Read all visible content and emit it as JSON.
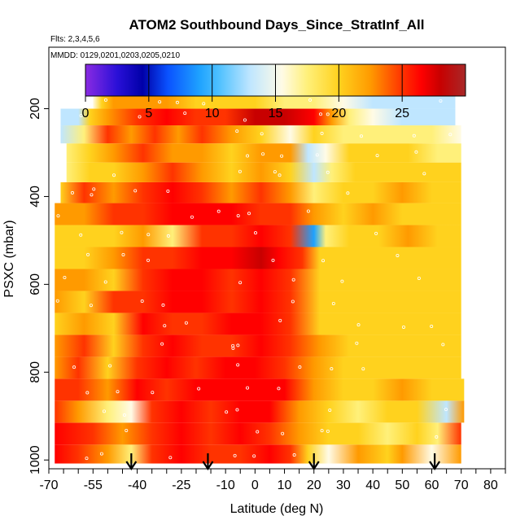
{
  "chart_data": {
    "type": "heatmap",
    "title": "ATOM2 Southbound Days_Since_StratInf_All",
    "flights_note": "Flts: 2,3,4,5,6",
    "dates_note": "MMDD: 0129,0201,0203,0205,0210",
    "xlabel": "Latitude (deg N)",
    "ylabel": "PSXC (mbar)",
    "xlim": [
      -70,
      85
    ],
    "ylim": [
      1020,
      60
    ],
    "x_ticks": [
      -70,
      -55,
      -40,
      -25,
      -10,
      0,
      10,
      20,
      30,
      40,
      50,
      60,
      70,
      80
    ],
    "x_minor_ticks": [
      -65,
      -60,
      -50,
      -45,
      -35,
      -30,
      -20,
      -15,
      -5,
      5,
      15,
      25,
      35,
      45,
      55,
      65,
      75,
      85
    ],
    "y_ticks": [
      200,
      400,
      600,
      800,
      1000
    ],
    "colorbar": {
      "range": [
        0,
        30
      ],
      "ticks": [
        0,
        5,
        10,
        15,
        20,
        25
      ],
      "stops": [
        {
          "v": 0,
          "color": "#8a2be2"
        },
        {
          "v": 2.5,
          "color": "#2a10d8"
        },
        {
          "v": 4.5,
          "color": "#0000a8"
        },
        {
          "v": 6.5,
          "color": "#0a52ff"
        },
        {
          "v": 9,
          "color": "#1ea2ff"
        },
        {
          "v": 10.5,
          "color": "#4dc0ff"
        },
        {
          "v": 13,
          "color": "#bfe6ff"
        },
        {
          "v": 15.5,
          "color": "#fffbe6"
        },
        {
          "v": 17.5,
          "color": "#fff07a"
        },
        {
          "v": 20,
          "color": "#ffd21e"
        },
        {
          "v": 22.5,
          "color": "#ff9a00"
        },
        {
          "v": 25,
          "color": "#ff3300"
        },
        {
          "v": 26.5,
          "color": "#ff0000"
        },
        {
          "v": 28,
          "color": "#c80000"
        },
        {
          "v": 30,
          "color": "#a82828"
        }
      ]
    },
    "arrow_latitudes": [
      -42,
      -16,
      20,
      61
    ],
    "profile_x_range": [
      -68,
      72
    ],
    "rows": [
      {
        "p": 990,
        "profile": [
          [
            -68,
            27
          ],
          [
            -60,
            25
          ],
          [
            -50,
            23
          ],
          [
            -42,
            18
          ],
          [
            -35,
            25
          ],
          [
            -25,
            26
          ],
          [
            -15,
            24
          ],
          [
            -5,
            25
          ],
          [
            5,
            26
          ],
          [
            12,
            25
          ],
          [
            18,
            20
          ],
          [
            25,
            16
          ],
          [
            35,
            22
          ],
          [
            45,
            19
          ],
          [
            50,
            22
          ],
          [
            60,
            16
          ],
          [
            70,
            23
          ]
        ]
      },
      {
        "p": 940,
        "profile": [
          [
            -68,
            26
          ],
          [
            -55,
            25
          ],
          [
            -45,
            22
          ],
          [
            -35,
            25
          ],
          [
            -25,
            27
          ],
          [
            -15,
            24
          ],
          [
            -5,
            26
          ],
          [
            5,
            25
          ],
          [
            15,
            23
          ],
          [
            25,
            19
          ],
          [
            35,
            21
          ],
          [
            45,
            18
          ],
          [
            55,
            21
          ],
          [
            62,
            17
          ],
          [
            70,
            24
          ]
        ]
      },
      {
        "p": 890,
        "profile": [
          [
            -68,
            24
          ],
          [
            -60,
            23
          ],
          [
            -50,
            17
          ],
          [
            -42,
            16
          ],
          [
            -35,
            24
          ],
          [
            -25,
            26
          ],
          [
            -15,
            25
          ],
          [
            -5,
            27
          ],
          [
            5,
            26
          ],
          [
            15,
            22
          ],
          [
            25,
            19
          ],
          [
            35,
            17
          ],
          [
            45,
            21
          ],
          [
            55,
            19
          ],
          [
            65,
            14
          ],
          [
            71,
            22
          ]
        ]
      },
      {
        "p": 840,
        "profile": [
          [
            -68,
            25
          ],
          [
            -60,
            24
          ],
          [
            -50,
            23
          ],
          [
            -40,
            26
          ],
          [
            -30,
            25
          ],
          [
            -20,
            27
          ],
          [
            -10,
            26
          ],
          [
            0,
            27
          ],
          [
            10,
            26
          ],
          [
            20,
            23
          ],
          [
            30,
            21
          ],
          [
            40,
            20
          ],
          [
            50,
            22
          ],
          [
            60,
            20
          ],
          [
            71,
            21
          ]
        ]
      },
      {
        "p": 790,
        "profile": [
          [
            -68,
            23
          ],
          [
            -60,
            24
          ],
          [
            -50,
            21
          ],
          [
            -40,
            25
          ],
          [
            -30,
            26
          ],
          [
            -20,
            25
          ],
          [
            -10,
            27
          ],
          [
            0,
            26
          ],
          [
            10,
            25
          ],
          [
            20,
            22
          ],
          [
            30,
            20
          ],
          [
            40,
            19
          ],
          [
            50,
            21
          ],
          [
            60,
            20
          ],
          [
            70,
            21
          ]
        ]
      },
      {
        "p": 740,
        "profile": [
          [
            -68,
            22
          ],
          [
            -58,
            24
          ],
          [
            -48,
            20
          ],
          [
            -38,
            25
          ],
          [
            -28,
            26
          ],
          [
            -18,
            25
          ],
          [
            -8,
            24
          ],
          [
            2,
            26
          ],
          [
            12,
            25
          ],
          [
            22,
            22
          ],
          [
            32,
            20
          ],
          [
            42,
            19
          ],
          [
            52,
            20
          ],
          [
            62,
            21
          ],
          [
            70,
            20
          ]
        ]
      },
      {
        "p": 690,
        "profile": [
          [
            -68,
            21
          ],
          [
            -58,
            22
          ],
          [
            -48,
            20
          ],
          [
            -38,
            26
          ],
          [
            -28,
            25
          ],
          [
            -18,
            24
          ],
          [
            -8,
            26
          ],
          [
            2,
            27
          ],
          [
            12,
            25
          ],
          [
            22,
            20
          ],
          [
            32,
            19
          ],
          [
            42,
            20
          ],
          [
            52,
            21
          ],
          [
            62,
            19
          ],
          [
            70,
            20
          ]
        ]
      },
      {
        "p": 640,
        "profile": [
          [
            -68,
            22
          ],
          [
            -58,
            21
          ],
          [
            -48,
            24
          ],
          [
            -38,
            25
          ],
          [
            -28,
            26
          ],
          [
            -18,
            27
          ],
          [
            -8,
            25
          ],
          [
            2,
            26
          ],
          [
            12,
            24
          ],
          [
            22,
            20
          ],
          [
            32,
            19
          ],
          [
            42,
            21
          ],
          [
            52,
            20
          ],
          [
            62,
            21
          ],
          [
            70,
            19
          ]
        ]
      },
      {
        "p": 590,
        "profile": [
          [
            -68,
            22
          ],
          [
            -58,
            23
          ],
          [
            -48,
            20
          ],
          [
            -38,
            24
          ],
          [
            -28,
            26
          ],
          [
            -18,
            27
          ],
          [
            -8,
            25
          ],
          [
            2,
            26
          ],
          [
            12,
            25
          ],
          [
            22,
            19
          ],
          [
            32,
            20
          ],
          [
            42,
            21
          ],
          [
            52,
            19
          ],
          [
            62,
            20
          ],
          [
            70,
            21
          ]
        ]
      },
      {
        "p": 540,
        "profile": [
          [
            -68,
            21
          ],
          [
            -58,
            19
          ],
          [
            -48,
            22
          ],
          [
            -38,
            24
          ],
          [
            -28,
            25
          ],
          [
            -18,
            26
          ],
          [
            -8,
            27
          ],
          [
            2,
            28
          ],
          [
            8,
            26
          ],
          [
            16,
            24
          ],
          [
            22,
            21
          ],
          [
            32,
            20
          ],
          [
            42,
            19
          ],
          [
            52,
            21
          ],
          [
            62,
            20
          ],
          [
            70,
            21
          ]
        ]
      },
      {
        "p": 490,
        "profile": [
          [
            -68,
            21
          ],
          [
            -58,
            20
          ],
          [
            -48,
            21
          ],
          [
            -38,
            22
          ],
          [
            -28,
            18
          ],
          [
            -18,
            24
          ],
          [
            -8,
            25
          ],
          [
            2,
            26
          ],
          [
            12,
            24
          ],
          [
            20,
            8
          ],
          [
            24,
            18
          ],
          [
            32,
            20
          ],
          [
            42,
            21
          ],
          [
            52,
            22
          ],
          [
            62,
            21
          ],
          [
            70,
            20
          ]
        ]
      },
      {
        "p": 440,
        "profile": [
          [
            -68,
            22
          ],
          [
            -58,
            23
          ],
          [
            -48,
            24
          ],
          [
            -38,
            25
          ],
          [
            -28,
            26
          ],
          [
            -18,
            27
          ],
          [
            -8,
            26
          ],
          [
            2,
            25
          ],
          [
            12,
            24
          ],
          [
            20,
            22
          ],
          [
            30,
            21
          ],
          [
            40,
            22
          ],
          [
            50,
            21
          ],
          [
            60,
            20
          ],
          [
            70,
            21
          ]
        ]
      },
      {
        "p": 390,
        "profile": [
          [
            -66,
            21
          ],
          [
            -58,
            24
          ],
          [
            -48,
            22
          ],
          [
            -38,
            25
          ],
          [
            -28,
            26
          ],
          [
            -18,
            24
          ],
          [
            -8,
            22
          ],
          [
            2,
            24
          ],
          [
            12,
            23
          ],
          [
            20,
            18
          ],
          [
            30,
            20
          ],
          [
            40,
            21
          ],
          [
            50,
            22
          ],
          [
            60,
            20
          ],
          [
            70,
            21
          ]
        ]
      },
      {
        "p": 345,
        "profile": [
          [
            -64,
            18
          ],
          [
            -56,
            21
          ],
          [
            -48,
            20
          ],
          [
            -38,
            22
          ],
          [
            -28,
            24
          ],
          [
            -18,
            23
          ],
          [
            -8,
            21
          ],
          [
            2,
            22
          ],
          [
            12,
            20
          ],
          [
            20,
            14
          ],
          [
            26,
            18
          ],
          [
            34,
            20
          ],
          [
            44,
            21
          ],
          [
            54,
            20
          ],
          [
            64,
            19
          ],
          [
            70,
            20
          ]
        ]
      },
      {
        "p": 300,
        "profile": [
          [
            -64,
            17
          ],
          [
            -56,
            20
          ],
          [
            -48,
            22
          ],
          [
            -38,
            24
          ],
          [
            -28,
            23
          ],
          [
            -18,
            22
          ],
          [
            -8,
            21
          ],
          [
            2,
            23
          ],
          [
            12,
            22
          ],
          [
            18,
            12
          ],
          [
            24,
            16
          ],
          [
            32,
            19
          ],
          [
            42,
            20
          ],
          [
            52,
            19
          ],
          [
            62,
            18
          ],
          [
            70,
            18
          ]
        ]
      },
      {
        "p": 258,
        "profile": [
          [
            -66,
            13
          ],
          [
            -58,
            18
          ],
          [
            -50,
            24
          ],
          [
            -42,
            22
          ],
          [
            -34,
            25
          ],
          [
            -26,
            23
          ],
          [
            -18,
            24
          ],
          [
            -8,
            22
          ],
          [
            2,
            21
          ],
          [
            12,
            16
          ],
          [
            20,
            19
          ],
          [
            30,
            18
          ],
          [
            40,
            17
          ],
          [
            50,
            18
          ],
          [
            60,
            17
          ],
          [
            70,
            16
          ]
        ]
      },
      {
        "p": 218,
        "profile": [
          [
            -66,
            12
          ],
          [
            -60,
            14
          ],
          [
            -56,
            20
          ],
          [
            -50,
            23
          ],
          [
            -40,
            24
          ],
          [
            -30,
            26
          ],
          [
            -20,
            25
          ],
          [
            -10,
            24
          ],
          [
            0,
            28
          ],
          [
            10,
            28
          ],
          [
            20,
            27
          ],
          [
            26,
            22
          ],
          [
            32,
            17
          ],
          [
            40,
            15
          ],
          [
            50,
            14
          ],
          [
            60,
            13
          ],
          [
            68,
            13
          ]
        ]
      },
      {
        "p": 182,
        "profile": [
          [
            -55,
            15
          ],
          [
            -52,
            20
          ],
          [
            -48,
            22
          ],
          [
            -40,
            23
          ],
          [
            -30,
            22
          ],
          [
            -20,
            21
          ],
          [
            -10,
            20
          ],
          [
            0,
            19
          ],
          [
            10,
            18
          ],
          [
            20,
            17
          ],
          [
            30,
            16
          ],
          [
            40,
            14
          ],
          [
            50,
            13
          ],
          [
            60,
            13
          ],
          [
            68,
            13
          ]
        ]
      }
    ]
  }
}
